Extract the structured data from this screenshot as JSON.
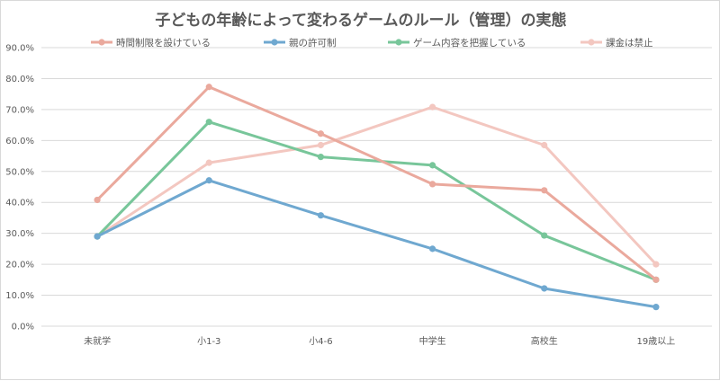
{
  "chart_data": {
    "type": "line",
    "title": "子どもの年齢によって変わるゲームのルール（管理）の実態",
    "categories": [
      "未就学",
      "小1-3",
      "小4-6",
      "中学生",
      "高校生",
      "19歳以上"
    ],
    "y_ticks": [
      "0.0%",
      "10.0%",
      "20.0%",
      "30.0%",
      "40.0%",
      "50.0%",
      "60.0%",
      "70.0%",
      "80.0%",
      "90.0%"
    ],
    "ylim": [
      0,
      90
    ],
    "grid": true,
    "legend_position": "top",
    "series": [
      {
        "name": "時間制限を設けている",
        "color": "#eaa99d",
        "values": [
          40.8,
          77.3,
          62.2,
          45.9,
          43.9,
          15.0
        ]
      },
      {
        "name": "親の許可制",
        "color": "#6fa8d0",
        "values": [
          29.0,
          47.1,
          35.8,
          25.0,
          12.2,
          6.2
        ]
      },
      {
        "name": "ゲーム内容を把握している",
        "color": "#78c69a",
        "values": [
          29.0,
          66.0,
          54.7,
          52.0,
          29.3,
          15.0
        ]
      },
      {
        "name": "課金は禁止",
        "color": "#f3c7c0",
        "values": [
          29.0,
          52.8,
          58.5,
          70.8,
          58.5,
          20.0
        ]
      }
    ]
  }
}
